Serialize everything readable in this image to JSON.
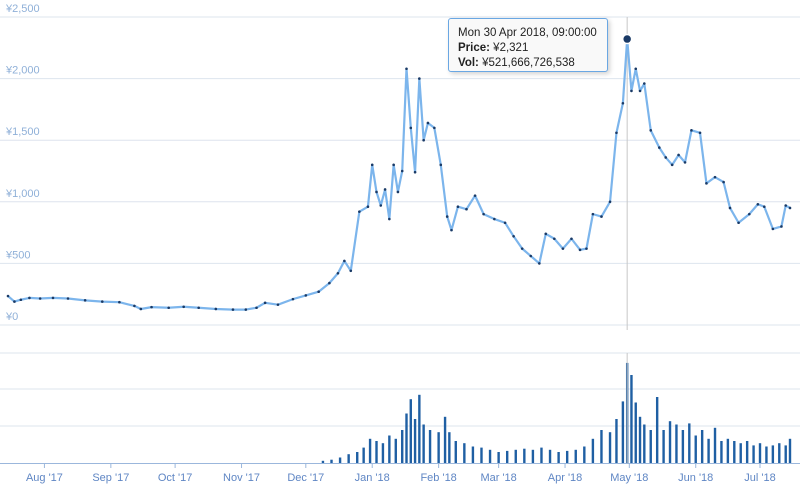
{
  "chart_data": {
    "type": "line",
    "series": [
      {
        "kind": "price",
        "style": "line-with-markers",
        "color": "#7cb5ec",
        "marker_color": "#1a3a66",
        "points": [
          [
            "2017-07-15",
            235
          ],
          [
            "2017-07-18",
            190
          ],
          [
            "2017-07-21",
            205
          ],
          [
            "2017-07-25",
            220
          ],
          [
            "2017-07-30",
            215
          ],
          [
            "2017-08-05",
            220
          ],
          [
            "2017-08-12",
            215
          ],
          [
            "2017-08-20",
            200
          ],
          [
            "2017-08-28",
            190
          ],
          [
            "2017-09-05",
            185
          ],
          [
            "2017-09-12",
            155
          ],
          [
            "2017-09-15",
            130
          ],
          [
            "2017-09-20",
            145
          ],
          [
            "2017-09-28",
            140
          ],
          [
            "2017-10-05",
            148
          ],
          [
            "2017-10-12",
            140
          ],
          [
            "2017-10-20",
            130
          ],
          [
            "2017-10-28",
            125
          ],
          [
            "2017-11-03",
            125
          ],
          [
            "2017-11-08",
            140
          ],
          [
            "2017-11-12",
            180
          ],
          [
            "2017-11-18",
            165
          ],
          [
            "2017-11-25",
            210
          ],
          [
            "2017-12-01",
            240
          ],
          [
            "2017-12-07",
            270
          ],
          [
            "2017-12-12",
            340
          ],
          [
            "2017-12-16",
            420
          ],
          [
            "2017-12-19",
            520
          ],
          [
            "2017-12-22",
            440
          ],
          [
            "2017-12-26",
            920
          ],
          [
            "2017-12-30",
            960
          ],
          [
            "2018-01-01",
            1300
          ],
          [
            "2018-01-03",
            1080
          ],
          [
            "2018-01-05",
            970
          ],
          [
            "2018-01-07",
            1100
          ],
          [
            "2018-01-09",
            860
          ],
          [
            "2018-01-11",
            1300
          ],
          [
            "2018-01-13",
            1080
          ],
          [
            "2018-01-15",
            1250
          ],
          [
            "2018-01-17",
            2080
          ],
          [
            "2018-01-19",
            1600
          ],
          [
            "2018-01-21",
            1240
          ],
          [
            "2018-01-23",
            2000
          ],
          [
            "2018-01-25",
            1500
          ],
          [
            "2018-01-27",
            1640
          ],
          [
            "2018-01-30",
            1600
          ],
          [
            "2018-02-02",
            1300
          ],
          [
            "2018-02-05",
            880
          ],
          [
            "2018-02-07",
            770
          ],
          [
            "2018-02-10",
            960
          ],
          [
            "2018-02-14",
            940
          ],
          [
            "2018-02-18",
            1050
          ],
          [
            "2018-02-22",
            900
          ],
          [
            "2018-02-27",
            860
          ],
          [
            "2018-03-04",
            830
          ],
          [
            "2018-03-08",
            720
          ],
          [
            "2018-03-12",
            620
          ],
          [
            "2018-03-16",
            560
          ],
          [
            "2018-03-20",
            500
          ],
          [
            "2018-03-23",
            740
          ],
          [
            "2018-03-27",
            700
          ],
          [
            "2018-03-31",
            620
          ],
          [
            "2018-04-04",
            700
          ],
          [
            "2018-04-08",
            610
          ],
          [
            "2018-04-11",
            620
          ],
          [
            "2018-04-14",
            900
          ],
          [
            "2018-04-18",
            880
          ],
          [
            "2018-04-22",
            1000
          ],
          [
            "2018-04-25",
            1560
          ],
          [
            "2018-04-28",
            1800
          ],
          [
            "2018-04-30",
            2321
          ],
          [
            "2018-05-02",
            1900
          ],
          [
            "2018-05-04",
            2080
          ],
          [
            "2018-05-06",
            1900
          ],
          [
            "2018-05-08",
            1960
          ],
          [
            "2018-05-11",
            1580
          ],
          [
            "2018-05-15",
            1440
          ],
          [
            "2018-05-18",
            1360
          ],
          [
            "2018-05-21",
            1300
          ],
          [
            "2018-05-24",
            1380
          ],
          [
            "2018-05-27",
            1320
          ],
          [
            "2018-05-30",
            1580
          ],
          [
            "2018-06-03",
            1560
          ],
          [
            "2018-06-06",
            1150
          ],
          [
            "2018-06-10",
            1200
          ],
          [
            "2018-06-14",
            1160
          ],
          [
            "2018-06-17",
            950
          ],
          [
            "2018-06-21",
            830
          ],
          [
            "2018-06-26",
            900
          ],
          [
            "2018-06-30",
            980
          ],
          [
            "2018-07-03",
            960
          ],
          [
            "2018-07-07",
            780
          ],
          [
            "2018-07-11",
            800
          ],
          [
            "2018-07-13",
            970
          ],
          [
            "2018-07-15",
            950
          ]
        ]
      },
      {
        "kind": "volume",
        "style": "column",
        "color": "#1f5fa3",
        "points": [
          [
            "2017-12-09",
            0.02
          ],
          [
            "2017-12-13",
            0.03
          ],
          [
            "2017-12-17",
            0.05
          ],
          [
            "2017-12-21",
            0.08
          ],
          [
            "2017-12-25",
            0.1
          ],
          [
            "2017-12-28",
            0.14
          ],
          [
            "2017-12-31",
            0.22
          ],
          [
            "2018-01-03",
            0.2
          ],
          [
            "2018-01-06",
            0.18
          ],
          [
            "2018-01-09",
            0.25
          ],
          [
            "2018-01-12",
            0.22
          ],
          [
            "2018-01-15",
            0.3
          ],
          [
            "2018-01-17",
            0.45
          ],
          [
            "2018-01-19",
            0.58
          ],
          [
            "2018-01-21",
            0.4
          ],
          [
            "2018-01-23",
            0.62
          ],
          [
            "2018-01-25",
            0.35
          ],
          [
            "2018-01-28",
            0.3
          ],
          [
            "2018-02-01",
            0.28
          ],
          [
            "2018-02-04",
            0.42
          ],
          [
            "2018-02-06",
            0.28
          ],
          [
            "2018-02-09",
            0.2
          ],
          [
            "2018-02-13",
            0.18
          ],
          [
            "2018-02-17",
            0.15
          ],
          [
            "2018-02-21",
            0.14
          ],
          [
            "2018-02-25",
            0.12
          ],
          [
            "2018-03-01",
            0.1
          ],
          [
            "2018-03-05",
            0.11
          ],
          [
            "2018-03-09",
            0.12
          ],
          [
            "2018-03-13",
            0.13
          ],
          [
            "2018-03-17",
            0.12
          ],
          [
            "2018-03-21",
            0.14
          ],
          [
            "2018-03-25",
            0.12
          ],
          [
            "2018-03-29",
            0.1
          ],
          [
            "2018-04-02",
            0.11
          ],
          [
            "2018-04-06",
            0.12
          ],
          [
            "2018-04-10",
            0.15
          ],
          [
            "2018-04-14",
            0.22
          ],
          [
            "2018-04-18",
            0.3
          ],
          [
            "2018-04-22",
            0.28
          ],
          [
            "2018-04-25",
            0.4
          ],
          [
            "2018-04-28",
            0.56
          ],
          [
            "2018-04-30",
            0.91
          ],
          [
            "2018-05-02",
            0.8
          ],
          [
            "2018-05-04",
            0.55
          ],
          [
            "2018-05-06",
            0.42
          ],
          [
            "2018-05-08",
            0.35
          ],
          [
            "2018-05-11",
            0.3
          ],
          [
            "2018-05-14",
            0.6
          ],
          [
            "2018-05-17",
            0.3
          ],
          [
            "2018-05-20",
            0.38
          ],
          [
            "2018-05-23",
            0.35
          ],
          [
            "2018-05-26",
            0.3
          ],
          [
            "2018-05-29",
            0.36
          ],
          [
            "2018-06-01",
            0.25
          ],
          [
            "2018-06-04",
            0.3
          ],
          [
            "2018-06-07",
            0.22
          ],
          [
            "2018-06-10",
            0.32
          ],
          [
            "2018-06-13",
            0.2
          ],
          [
            "2018-06-16",
            0.22
          ],
          [
            "2018-06-19",
            0.2
          ],
          [
            "2018-06-22",
            0.18
          ],
          [
            "2018-06-25",
            0.2
          ],
          [
            "2018-06-28",
            0.16
          ],
          [
            "2018-07-01",
            0.18
          ],
          [
            "2018-07-04",
            0.15
          ],
          [
            "2018-07-07",
            0.16
          ],
          [
            "2018-07-10",
            0.18
          ],
          [
            "2018-07-13",
            0.16
          ],
          [
            "2018-07-15",
            0.22
          ]
        ]
      }
    ],
    "price_axis": {
      "ylim": [
        0,
        2500
      ],
      "tick_labels": [
        "¥0",
        "¥500",
        "¥1,000",
        "¥1,500",
        "¥2,000",
        "¥2,500"
      ],
      "tick_values": [
        0,
        500,
        1000,
        1500,
        2000,
        2500
      ]
    },
    "xlim": [
      "2017-07-15",
      "2018-07-15"
    ],
    "x_ticks": [
      {
        "label": "Aug '17",
        "date": "2017-08-01"
      },
      {
        "label": "Sep '17",
        "date": "2017-09-01"
      },
      {
        "label": "Oct '17",
        "date": "2017-10-01"
      },
      {
        "label": "Nov '17",
        "date": "2017-11-01"
      },
      {
        "label": "Dec '17",
        "date": "2017-12-01"
      },
      {
        "label": "Jan '18",
        "date": "2018-01-01"
      },
      {
        "label": "Feb '18",
        "date": "2018-02-01"
      },
      {
        "label": "Mar '18",
        "date": "2018-03-01"
      },
      {
        "label": "Apr '18",
        "date": "2018-04-01"
      },
      {
        "label": "May '18",
        "date": "2018-05-01"
      },
      {
        "label": "Jun '18",
        "date": "2018-06-01"
      },
      {
        "label": "Jul '18",
        "date": "2018-07-01"
      }
    ],
    "grid": true,
    "tooltip": {
      "title": "Mon 30 Apr 2018, 09:00:00",
      "price_label": "Price:",
      "price_value": "¥2,321",
      "vol_label": "Vol:",
      "vol_value": "¥521,666,726,538",
      "date": "2018-04-30",
      "price": 2321
    }
  }
}
